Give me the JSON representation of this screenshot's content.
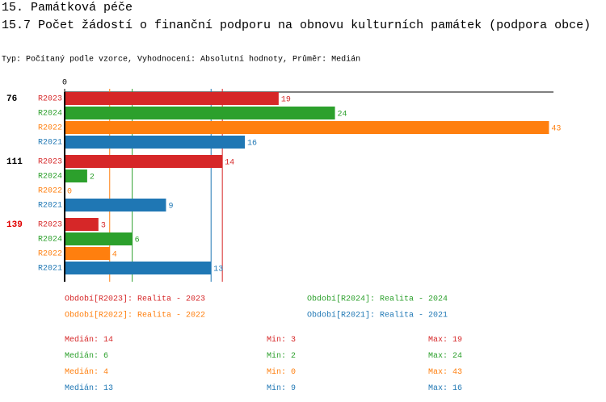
{
  "chart_data": {
    "type": "bar",
    "title": "15. Památková péče",
    "subtitle": "15.7 Počet žádostí o finanční podporu na obnovu kulturních památek (podpora obce)",
    "note": "Typ: Počítaný podle vzorce, Vyhodnocení: Absolutní hodnoty, Průměr: Medián",
    "categories": [
      "76",
      "111",
      "139"
    ],
    "category_colors": [
      "#000000",
      "#000000",
      "#e00000"
    ],
    "xlim": [
      0,
      43.4
    ],
    "xticks": [
      0
    ],
    "stat_labels": {
      "median": "Medián:",
      "min": "Min:",
      "max": "Max:"
    },
    "series": [
      {
        "name": "R2023",
        "legend": "Období[R2023]: Realita - 2023",
        "color": "#d62728",
        "values": [
          19,
          14,
          3
        ],
        "median": 14,
        "min": 3,
        "max": 19
      },
      {
        "name": "R2024",
        "legend": "Období[R2024]: Realita - 2024",
        "color": "#2ca02c",
        "values": [
          24,
          2,
          6
        ],
        "median": 6,
        "min": 2,
        "max": 24
      },
      {
        "name": "R2022",
        "legend": "Období[R2022]: Realita - 2022",
        "color": "#ff7f0e",
        "values": [
          43,
          0,
          4
        ],
        "median": 4,
        "min": 0,
        "max": 43
      },
      {
        "name": "R2021",
        "legend": "Období[R2021]: Realita - 2021",
        "color": "#1f77b4",
        "values": [
          16,
          9,
          13
        ],
        "median": 13,
        "min": 9,
        "max": 16
      }
    ]
  }
}
